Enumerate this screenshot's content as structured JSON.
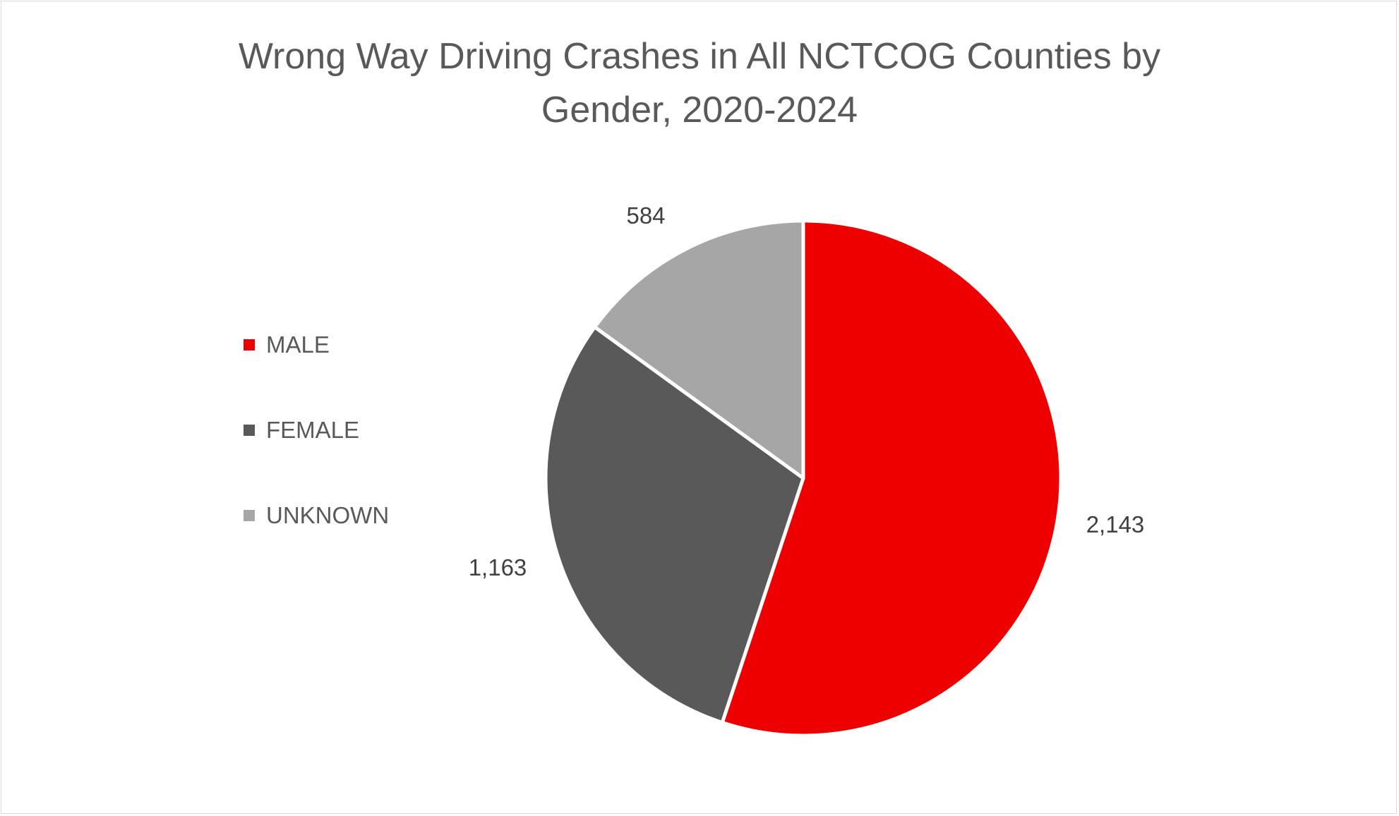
{
  "chart_data": {
    "type": "pie",
    "title_lines": [
      "Wrong Way Driving Crashes in All NCTCOG Counties by",
      "Gender, 2020-2024"
    ],
    "categories": [
      "MALE",
      "FEMALE",
      "UNKNOWN"
    ],
    "values": [
      2143,
      1163,
      584
    ],
    "value_labels": [
      "2,143",
      "1,163",
      "584"
    ],
    "colors": [
      "#ee0000",
      "#595959",
      "#a6a6a6"
    ],
    "legend_position": "left",
    "start_angle": "top, clockwise"
  }
}
